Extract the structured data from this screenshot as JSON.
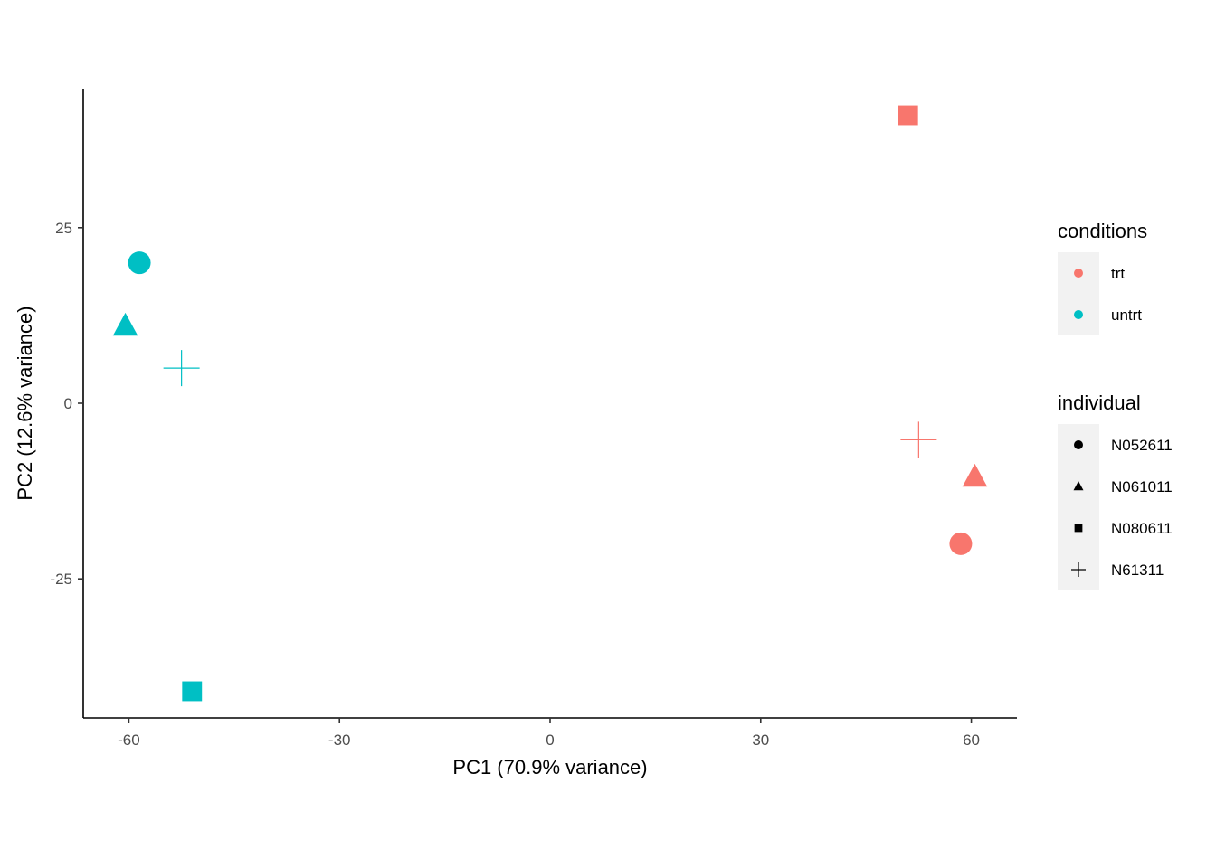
{
  "chart_data": {
    "type": "scatter",
    "xlabel": "PC1 (70.9% variance)",
    "ylabel": "PC2 (12.6% variance)",
    "xlim": [
      -66.5,
      66.5
    ],
    "ylim": [
      -44.8,
      44.8
    ],
    "x_ticks": [
      -60,
      -30,
      0,
      30,
      60
    ],
    "x_tick_labels": [
      "-60",
      "-30",
      "0",
      "30",
      "60"
    ],
    "y_ticks": [
      -25,
      0,
      25
    ],
    "y_tick_labels": [
      "-25",
      "0",
      "25"
    ],
    "grid": false,
    "legend_position": "right",
    "colors": {
      "trt": "#F8766D",
      "untrt": "#00BFC4"
    },
    "legends": {
      "conditions": {
        "title": "conditions",
        "items": [
          "trt",
          "untrt"
        ]
      },
      "individual": {
        "title": "individual",
        "items": [
          "N052611",
          "N061011",
          "N080611",
          "N61311"
        ]
      }
    },
    "shapes": {
      "N052611": "circle",
      "N061011": "triangle",
      "N080611": "square",
      "N61311": "plus"
    },
    "points": [
      {
        "condition": "untrt",
        "individual": "N052611",
        "x": -58.5,
        "y": 20.0
      },
      {
        "condition": "untrt",
        "individual": "N061011",
        "x": -60.5,
        "y": 11.0
      },
      {
        "condition": "untrt",
        "individual": "N61311",
        "x": -52.5,
        "y": 5.0
      },
      {
        "condition": "untrt",
        "individual": "N080611",
        "x": -51.0,
        "y": -41.0
      },
      {
        "condition": "trt",
        "individual": "N080611",
        "x": 51.0,
        "y": 41.0
      },
      {
        "condition": "trt",
        "individual": "N61311",
        "x": 52.5,
        "y": -5.2
      },
      {
        "condition": "trt",
        "individual": "N061011",
        "x": 60.5,
        "y": -10.5
      },
      {
        "condition": "trt",
        "individual": "N052611",
        "x": 58.5,
        "y": -20.0
      }
    ]
  }
}
